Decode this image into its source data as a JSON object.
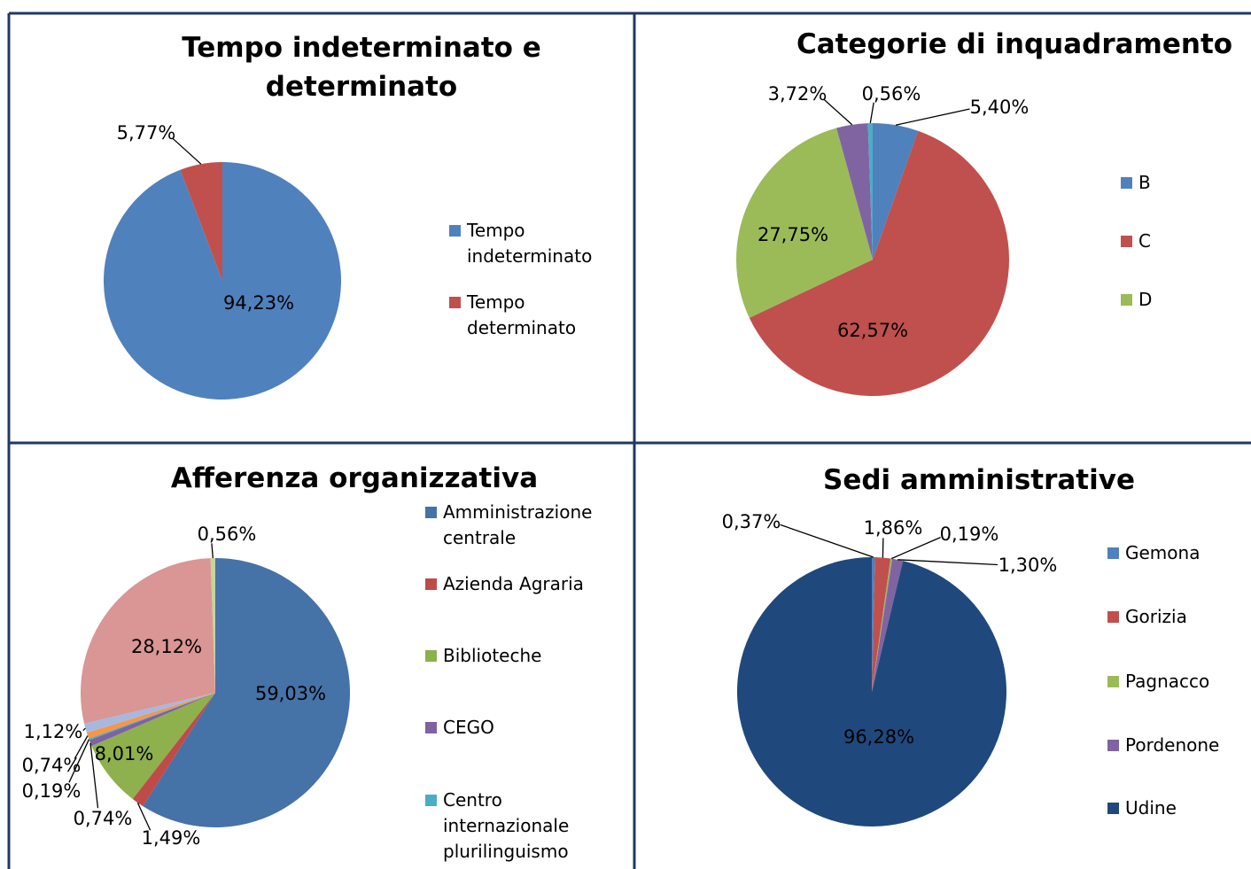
{
  "chart_data": [
    {
      "type": "pie",
      "title": "Tempo indeterminato e determinato",
      "categories": [
        "Tempo indeterminato",
        "Tempo determinato"
      ],
      "values": [
        94.23,
        5.77
      ],
      "value_labels": [
        "94,23%",
        "5,77%"
      ],
      "colors": [
        "#4f81bd",
        "#c0504d"
      ]
    },
    {
      "type": "pie",
      "title": "Categorie di inquadramento",
      "categories": [
        "B",
        "C",
        "D",
        null,
        null
      ],
      "values": [
        5.4,
        62.57,
        27.75,
        3.72,
        0.56
      ],
      "value_labels": [
        "5,40%",
        "62,57%",
        "27,75%",
        "3,72%",
        "0,56%"
      ],
      "colors": [
        "#4f81bd",
        "#c0504d",
        "#9bbb59",
        "#8064a2",
        "#4bacc6"
      ]
    },
    {
      "type": "pie",
      "title": "Afferenza organizzativa",
      "categories": [
        "Amministrazione centrale",
        "Azienda Agraria",
        "Biblioteche",
        "CEGO",
        "Centro internazionale plurilinguismo",
        null,
        null,
        null,
        null
      ],
      "values": [
        59.03,
        1.49,
        8.01,
        0.74,
        0.19,
        0.74,
        1.12,
        28.12,
        0.56
      ],
      "value_labels": [
        "59,03%",
        "1,49%",
        "8,01%",
        "0,74%",
        "0,19%",
        "0,74%",
        "1,12%",
        "28,12%",
        "0,56%"
      ],
      "colors": [
        "#4572a7",
        "#bf4b48",
        "#8eb04d",
        "#7e62a1",
        "#4bacc6",
        "#f79646",
        "#a5b9e0",
        "#d99694",
        "#c3d69b"
      ]
    },
    {
      "type": "pie",
      "title": "Sedi amministrative",
      "categories": [
        "Gemona",
        "Gorizia",
        "Pagnacco",
        "Pordenone",
        "Udine"
      ],
      "values": [
        0.37,
        1.86,
        0.19,
        1.3,
        96.28
      ],
      "value_labels": [
        "0,37%",
        "1,86%",
        "0,19%",
        "1,30%",
        "96,28%"
      ],
      "colors": [
        "#4f81bd",
        "#c0504d",
        "#9bbb59",
        "#8064a2",
        "#1f497d"
      ]
    }
  ]
}
